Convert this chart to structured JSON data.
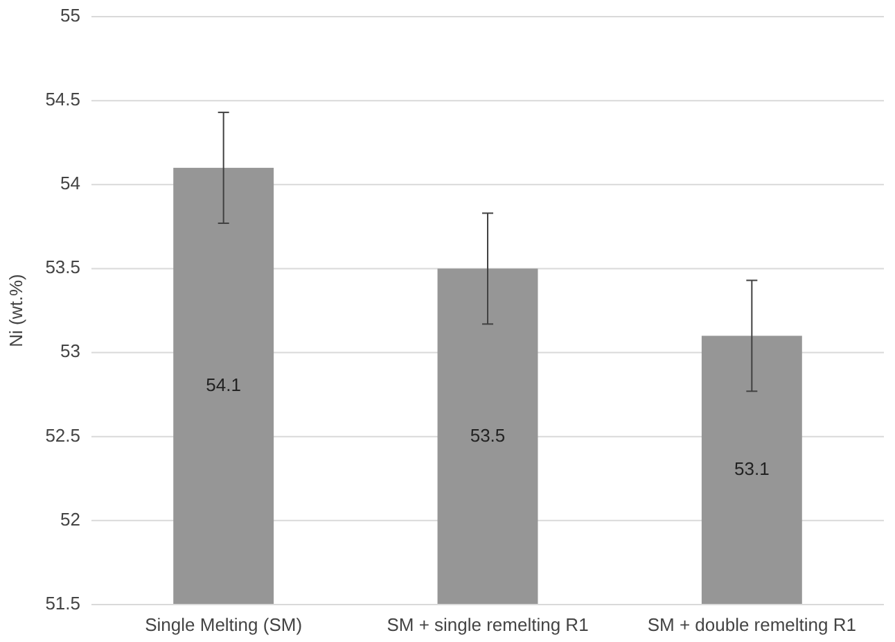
{
  "chart_data": {
    "type": "bar",
    "ylabel": "Ni (wt.%)",
    "categories": [
      "Single Melting (SM)",
      "SM + single remelting R1",
      "SM + double remelting R1"
    ],
    "values": [
      54.1,
      53.5,
      53.1
    ],
    "errors": [
      0.33,
      0.33,
      0.33
    ],
    "color": "#969696",
    "ylim": [
      51.5,
      55
    ],
    "yticks": [
      51.5,
      52,
      52.5,
      53,
      53.5,
      54,
      54.5,
      55
    ],
    "grid": "y",
    "data_labels": true
  }
}
